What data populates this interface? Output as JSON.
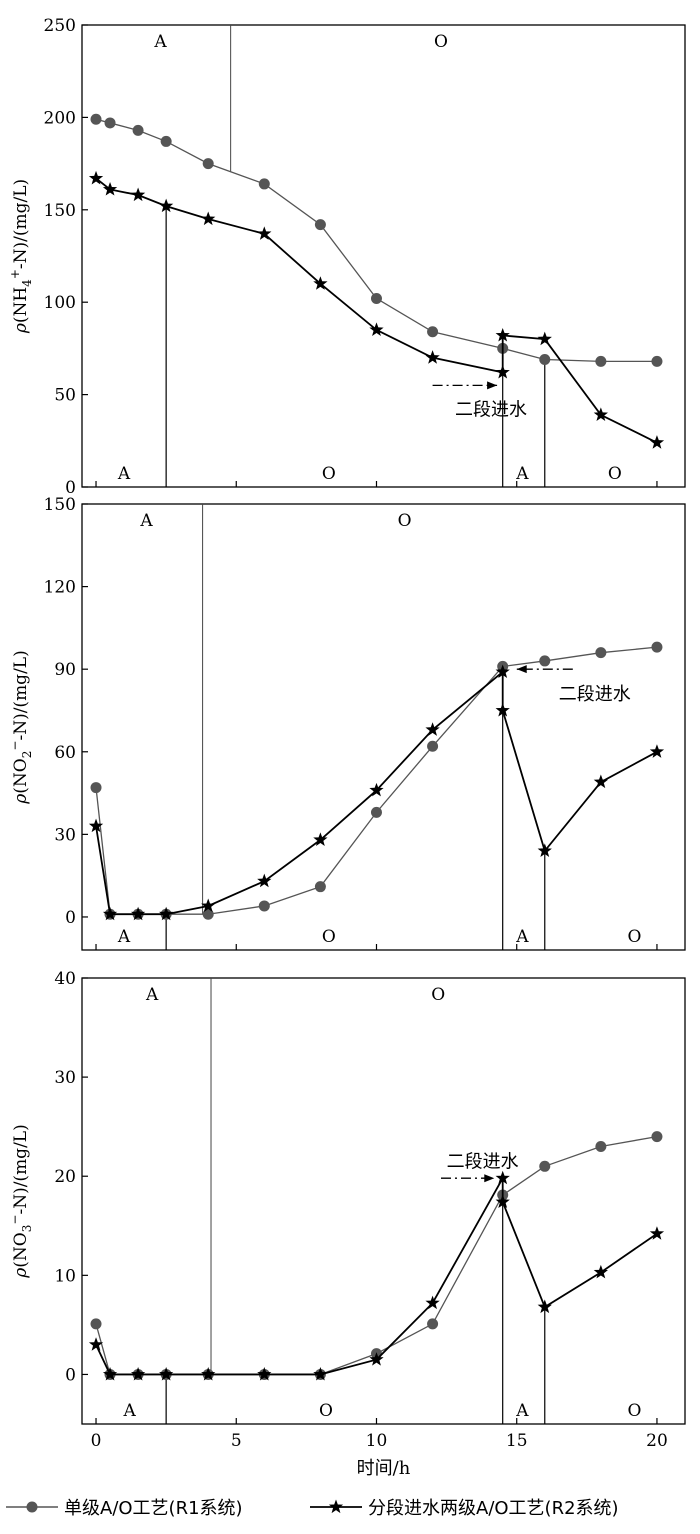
{
  "chart_data": [
    {
      "type": "line",
      "ylabel_parts": [
        "ρ",
        "(NH",
        "4",
        "+",
        "-N)/(mg/L)"
      ],
      "ylim": [
        0,
        250
      ],
      "yticks": [
        0,
        50,
        100,
        150,
        200,
        250
      ],
      "xlim": [
        -0.5,
        21
      ],
      "xticks": [
        0,
        5,
        10,
        15,
        20
      ],
      "series": [
        {
          "x": [
            0,
            0.5,
            1.5,
            2.5,
            4,
            6,
            8,
            10,
            12,
            14.5,
            16,
            18,
            20
          ],
          "values": [
            199,
            197,
            193,
            187,
            175,
            164,
            142,
            102,
            84,
            75,
            69,
            68,
            68
          ]
        },
        {
          "x": [
            0,
            0.5,
            1.5,
            2.5,
            4,
            6,
            8,
            10,
            12,
            14.5,
            14.5,
            16,
            18,
            20
          ],
          "values": [
            167,
            161,
            158,
            152,
            145,
            137,
            110,
            85,
            70,
            62,
            82,
            80,
            39,
            24
          ]
        }
      ],
      "upper_divider_x": 4.8,
      "upper_labels": [
        {
          "text": "A",
          "x": 2.3
        },
        {
          "text": "O",
          "x": 12.3
        }
      ],
      "lower_dividers": [
        {
          "x": 2.5,
          "top": 152
        },
        {
          "x": 14.5,
          "top": 62
        },
        {
          "x": 16,
          "top": 69
        }
      ],
      "lower_labels": [
        {
          "text": "A",
          "x": 1
        },
        {
          "text": "O",
          "x": 8.3
        },
        {
          "text": "A",
          "x": 15.2
        },
        {
          "text": "O",
          "x": 18.5
        }
      ],
      "annotation": {
        "text": "二段进水",
        "text_x": 12.8,
        "text_y": 42,
        "arrow_from": 12,
        "arrow_to": 14.3,
        "arrow_y": 55
      }
    },
    {
      "type": "line",
      "ylabel_parts": [
        "ρ",
        "(NO",
        "2",
        "−",
        "-N)/(mg/L)"
      ],
      "ylim": [
        -12,
        150
      ],
      "yticks": [
        0,
        30,
        60,
        90,
        120,
        150
      ],
      "xlim": [
        -0.5,
        21
      ],
      "xticks": [
        0,
        5,
        10,
        15,
        20
      ],
      "series": [
        {
          "x": [
            0,
            0.5,
            1.5,
            2.5,
            4,
            6,
            8,
            10,
            12,
            14.5,
            16,
            18,
            20
          ],
          "values": [
            47,
            1,
            1,
            1,
            1,
            4,
            11,
            38,
            62,
            91,
            93,
            96,
            98
          ]
        },
        {
          "x": [
            0,
            0.5,
            1.5,
            2.5,
            4,
            6,
            8,
            10,
            12,
            14.5,
            14.5,
            16,
            18,
            20
          ],
          "values": [
            33,
            1,
            1,
            1,
            4,
            13,
            28,
            46,
            68,
            89,
            75,
            24,
            49,
            60
          ]
        }
      ],
      "upper_divider_x": 3.8,
      "upper_labels": [
        {
          "text": "A",
          "x": 1.8
        },
        {
          "text": "O",
          "x": 11
        }
      ],
      "lower_dividers": [
        {
          "x": 2.5,
          "top": 1
        },
        {
          "x": 14.5,
          "top": 89
        },
        {
          "x": 16,
          "top": 24
        }
      ],
      "lower_labels": [
        {
          "text": "A",
          "x": 1
        },
        {
          "text": "O",
          "x": 8.3
        },
        {
          "text": "A",
          "x": 15.2
        },
        {
          "text": "O",
          "x": 19.2
        }
      ],
      "annotation": {
        "text": "二段进水",
        "text_x": 16.5,
        "text_y": 81,
        "arrow_from": 17,
        "arrow_to": 15,
        "arrow_y": 90
      }
    },
    {
      "type": "line",
      "ylabel_parts": [
        "ρ",
        "(NO",
        "3",
        "−",
        "-N)/(mg/L)"
      ],
      "ylim": [
        -5,
        40
      ],
      "yticks": [
        0,
        10,
        20,
        30,
        40
      ],
      "xlim": [
        -0.5,
        21
      ],
      "xticks": [
        0,
        5,
        10,
        15,
        20
      ],
      "xticklabels": [
        "0",
        "5",
        "10",
        "15",
        "20"
      ],
      "xlabel": "时间/h",
      "series": [
        {
          "x": [
            0,
            0.5,
            1.5,
            2.5,
            4,
            6,
            8,
            10,
            12,
            14.5,
            16,
            18,
            20
          ],
          "values": [
            5.1,
            0,
            0,
            0,
            0,
            0,
            0,
            2.1,
            5.1,
            18.1,
            21,
            23,
            24
          ]
        },
        {
          "x": [
            0,
            0.5,
            1.5,
            2.5,
            4,
            6,
            8,
            10,
            12,
            14.5,
            14.5,
            16,
            18,
            20
          ],
          "values": [
            3,
            0,
            0,
            0,
            0,
            0,
            0,
            1.5,
            7.2,
            19.8,
            17.4,
            6.8,
            10.3,
            14.2
          ]
        }
      ],
      "upper_divider_x": 4.1,
      "upper_labels": [
        {
          "text": "A",
          "x": 2
        },
        {
          "text": "O",
          "x": 12.2
        }
      ],
      "lower_dividers": [
        {
          "x": 2.5,
          "top": 0
        },
        {
          "x": 14.5,
          "top": 19.8
        },
        {
          "x": 16,
          "top": 6.8
        }
      ],
      "lower_labels": [
        {
          "text": "A",
          "x": 1.2
        },
        {
          "text": "O",
          "x": 8.2
        },
        {
          "text": "A",
          "x": 15.2
        },
        {
          "text": "O",
          "x": 19.2
        }
      ],
      "annotation": {
        "text": "二段进水",
        "text_x": 12.5,
        "text_y": 21.5,
        "arrow_from": 12.3,
        "arrow_to": 14.2,
        "arrow_y": 19.8
      }
    }
  ],
  "legend": {
    "entries": [
      {
        "label": "单级A/O工艺(R1系统)",
        "marker": "circle",
        "color": "#555555"
      },
      {
        "label": "分段进水两级A/O工艺(R2系统)",
        "marker": "star",
        "color": "#000000"
      }
    ]
  },
  "colors": {
    "series1": "#555555",
    "series2": "#000000",
    "axis": "#000000"
  }
}
